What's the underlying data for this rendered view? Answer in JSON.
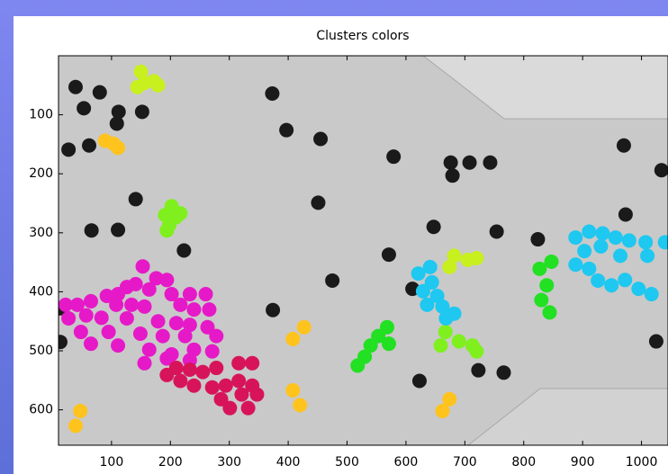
{
  "chart_data": {
    "type": "scatter",
    "title": "Clusters colors",
    "xlim": [
      10,
      1045
    ],
    "ylim": [
      0,
      660
    ],
    "y_reversed": true,
    "xticks": [
      100,
      200,
      300,
      400,
      500,
      600,
      700,
      800,
      900,
      1000
    ],
    "yticks": [
      100,
      200,
      300,
      400,
      500,
      600
    ],
    "series": [
      {
        "color": "#1a1a1a",
        "x": [
          39,
          80,
          53,
          112,
          152,
          27,
          62,
          109,
          373,
          397,
          455,
          579,
          676,
          708,
          743,
          679,
          970,
          1034,
          141,
          66,
          111,
          223,
          451,
          647,
          754,
          973,
          571,
          475,
          824,
          611,
          374,
          13,
          13,
          623,
          723,
          766,
          1025
        ],
        "y": [
          53,
          62,
          89,
          95,
          95,
          159,
          152,
          115,
          64,
          126,
          141,
          171,
          181,
          181,
          181,
          203,
          152,
          194,
          243,
          296,
          295,
          330,
          249,
          290,
          298,
          269,
          337,
          381,
          311,
          395,
          431,
          428,
          485,
          551,
          533,
          537,
          484
        ]
      },
      {
        "color": "#c8f01e",
        "x": [
          150,
          156,
          172,
          179,
          144,
          682,
          705,
          674,
          720
        ],
        "y": [
          27,
          46,
          43,
          50,
          53,
          339,
          346,
          358,
          343
        ]
      },
      {
        "color": "#ffc31e",
        "x": [
          89,
          103,
          111,
          408,
          427,
          408,
          420,
          47,
          39,
          662,
          674
        ],
        "y": [
          144,
          149,
          156,
          480,
          460,
          567,
          592,
          602,
          627,
          602,
          582
        ]
      },
      {
        "color": "#7ff01e",
        "x": [
          202,
          191,
          209,
          217,
          198,
          194,
          667,
          690,
          713,
          659,
          720
        ],
        "y": [
          255,
          270,
          274,
          267,
          287,
          296,
          468,
          484,
          491,
          491,
          501
        ]
      },
      {
        "color": "#22e022",
        "x": [
          568,
          553,
          571,
          540,
          530,
          518,
          827,
          847,
          839,
          830,
          844
        ],
        "y": [
          460,
          475,
          488,
          491,
          510,
          525,
          361,
          349,
          389,
          414,
          435
        ]
      },
      {
        "color": "#e619c8",
        "x": [
          153,
          176,
          194,
          141,
          126,
          164,
          202,
          233,
          260,
          111,
          92,
          65,
          42,
          22,
          108,
          134,
          156,
          217,
          240,
          266,
          27,
          57,
          83,
          126,
          179,
          210,
          233,
          263,
          48,
          95,
          149,
          187,
          225,
          278,
          65,
          111,
          164,
          202,
          240,
          271,
          156,
          194,
          233
        ],
        "y": [
          357,
          377,
          380,
          387,
          392,
          396,
          404,
          404,
          404,
          404,
          407,
          416,
          422,
          422,
          422,
          422,
          425,
          422,
          430,
          430,
          445,
          440,
          444,
          445,
          450,
          453,
          456,
          460,
          468,
          468,
          471,
          475,
          475,
          475,
          488,
          491,
          498,
          506,
          498,
          501,
          521,
          513,
          516
        ]
      },
      {
        "color": "#d7145a",
        "x": [
          210,
          233,
          255,
          278,
          316,
          339,
          217,
          194,
          240,
          271,
          294,
          316,
          339,
          321,
          347,
          301,
          332,
          286
        ],
        "y": [
          529,
          532,
          536,
          529,
          521,
          521,
          551,
          541,
          559,
          562,
          559,
          551,
          559,
          574,
          574,
          597,
          597,
          582
        ]
      },
      {
        "color": "#1ec8f0",
        "x": [
          621,
          641,
          644,
          629,
          653,
          636,
          662,
          682,
          668,
          888,
          911,
          934,
          956,
          979,
          1007,
          903,
          931,
          964,
          888,
          911,
          926,
          949,
          972,
          995,
          1017,
          1040,
          1010
        ],
        "y": [
          369,
          358,
          384,
          399,
          407,
          422,
          425,
          437,
          445,
          308,
          298,
          301,
          308,
          313,
          316,
          331,
          323,
          339,
          354,
          361,
          381,
          389,
          380,
          395,
          404,
          316,
          339
        ]
      }
    ]
  }
}
